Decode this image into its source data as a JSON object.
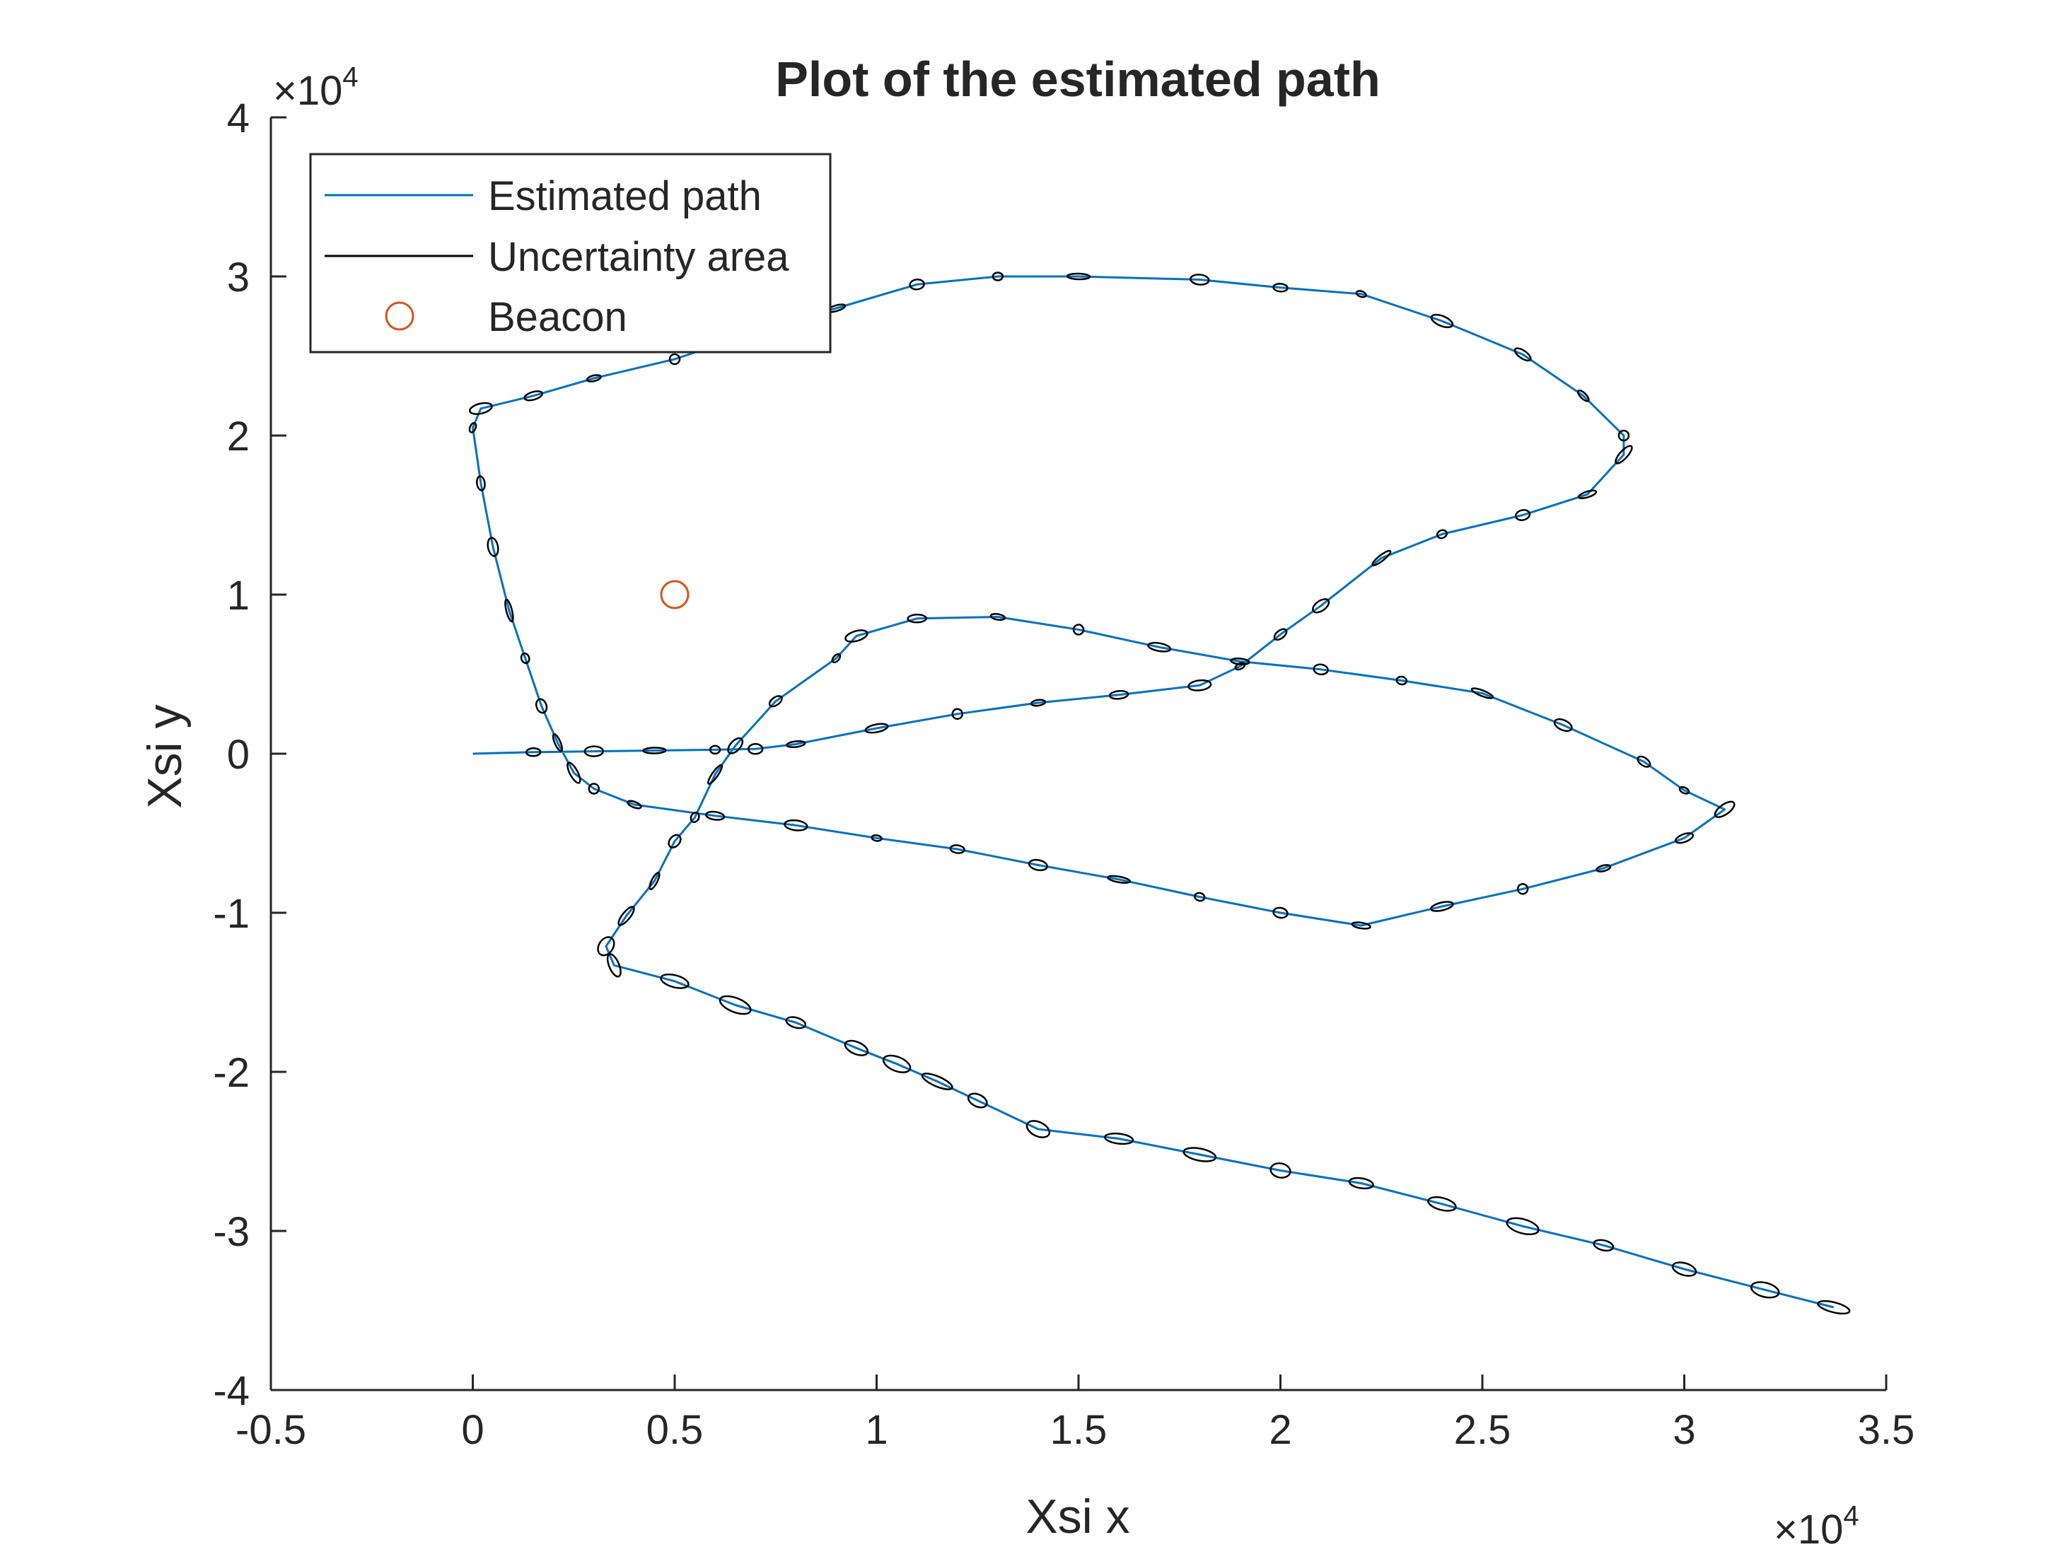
{
  "chart_data": {
    "type": "line",
    "title": "Plot of the estimated path",
    "xlabel": "Xsi x",
    "ylabel": "Xsi y",
    "x_exponent_label": "×10",
    "x_exponent_power": "4",
    "y_exponent_label": "×10",
    "y_exponent_power": "4",
    "xlim": [
      -5000,
      35000
    ],
    "ylim": [
      -40000,
      40000
    ],
    "x_ticks": [
      -5000,
      0,
      5000,
      10000,
      15000,
      20000,
      25000,
      30000,
      35000
    ],
    "x_tick_labels": [
      "-0.5",
      "0",
      "0.5",
      "1",
      "1.5",
      "2",
      "2.5",
      "3",
      "3.5"
    ],
    "y_ticks": [
      -40000,
      -30000,
      -20000,
      -10000,
      0,
      10000,
      20000,
      30000,
      40000
    ],
    "y_tick_labels": [
      "-4",
      "-3",
      "-2",
      "-1",
      "0",
      "1",
      "2",
      "3",
      "4"
    ],
    "grid": false,
    "legend_position": "top-left",
    "colors": {
      "path": "#0072BD",
      "ellipse": "#000000",
      "beacon": "#D95319",
      "axis": "#262626"
    },
    "legend": [
      {
        "label": "Estimated path",
        "kind": "line",
        "color": "#0072BD"
      },
      {
        "label": "Uncertainty area",
        "kind": "line",
        "color": "#000000"
      },
      {
        "label": "Beacon",
        "kind": "marker",
        "color": "#D95319"
      }
    ],
    "beacon": {
      "x": 5000,
      "y": 10000
    },
    "series": [
      {
        "name": "Estimated path",
        "points": [
          [
            0,
            0
          ],
          [
            1500,
            100
          ],
          [
            3000,
            150
          ],
          [
            4500,
            200
          ],
          [
            6000,
            250
          ],
          [
            7000,
            300
          ],
          [
            8000,
            600
          ],
          [
            10000,
            1600
          ],
          [
            12000,
            2500
          ],
          [
            14000,
            3200
          ],
          [
            16000,
            3700
          ],
          [
            18000,
            4300
          ],
          [
            19000,
            5500
          ],
          [
            20000,
            7500
          ],
          [
            21000,
            9300
          ],
          [
            22500,
            12300
          ],
          [
            24000,
            13800
          ],
          [
            26000,
            15000
          ],
          [
            27600,
            16300
          ],
          [
            28500,
            18800
          ],
          [
            28500,
            20000
          ],
          [
            27500,
            22500
          ],
          [
            26000,
            25100
          ],
          [
            24000,
            27200
          ],
          [
            22000,
            28900
          ],
          [
            20000,
            29300
          ],
          [
            18000,
            29800
          ],
          [
            15000,
            30000
          ],
          [
            13000,
            30000
          ],
          [
            11000,
            29500
          ],
          [
            9000,
            28000
          ],
          [
            7000,
            26500
          ],
          [
            5000,
            24800
          ],
          [
            3000,
            23600
          ],
          [
            1500,
            22500
          ],
          [
            200,
            21700
          ],
          [
            0,
            20500
          ],
          [
            200,
            17000
          ],
          [
            500,
            13000
          ],
          [
            900,
            9000
          ],
          [
            1300,
            6000
          ],
          [
            1700,
            3000
          ],
          [
            2100,
            700
          ],
          [
            2500,
            -1200
          ],
          [
            3000,
            -2200
          ],
          [
            4000,
            -3200
          ],
          [
            6000,
            -3900
          ],
          [
            8000,
            -4500
          ],
          [
            10000,
            -5300
          ],
          [
            12000,
            -6000
          ],
          [
            14000,
            -7000
          ],
          [
            16000,
            -7900
          ],
          [
            18000,
            -9000
          ],
          [
            20000,
            -10000
          ],
          [
            22000,
            -10800
          ],
          [
            24000,
            -9600
          ],
          [
            26000,
            -8500
          ],
          [
            28000,
            -7200
          ],
          [
            30000,
            -5300
          ],
          [
            31000,
            -3500
          ],
          [
            30000,
            -2300
          ],
          [
            29000,
            -500
          ],
          [
            27000,
            1800
          ],
          [
            25000,
            3800
          ],
          [
            23000,
            4600
          ],
          [
            21000,
            5300
          ],
          [
            19000,
            5800
          ],
          [
            17000,
            6700
          ],
          [
            15000,
            7800
          ],
          [
            13000,
            8600
          ],
          [
            11000,
            8500
          ],
          [
            9500,
            7400
          ],
          [
            9000,
            6000
          ],
          [
            7500,
            3300
          ],
          [
            6500,
            500
          ],
          [
            6000,
            -1300
          ],
          [
            5500,
            -4000
          ],
          [
            5000,
            -5500
          ],
          [
            4500,
            -8000
          ],
          [
            3800,
            -10200
          ],
          [
            3300,
            -12100
          ],
          [
            3500,
            -13300
          ],
          [
            5000,
            -14300
          ],
          [
            6500,
            -15800
          ],
          [
            8000,
            -16900
          ],
          [
            9500,
            -18500
          ],
          [
            10500,
            -19500
          ],
          [
            11500,
            -20600
          ],
          [
            12500,
            -21800
          ],
          [
            14000,
            -23600
          ],
          [
            16000,
            -24200
          ],
          [
            18000,
            -25200
          ],
          [
            20000,
            -26200
          ],
          [
            22000,
            -27000
          ],
          [
            24000,
            -28300
          ],
          [
            26000,
            -29700
          ],
          [
            28000,
            -30900
          ],
          [
            30000,
            -32400
          ],
          [
            32000,
            -33700
          ],
          [
            33700,
            -34800
          ]
        ]
      }
    ]
  }
}
